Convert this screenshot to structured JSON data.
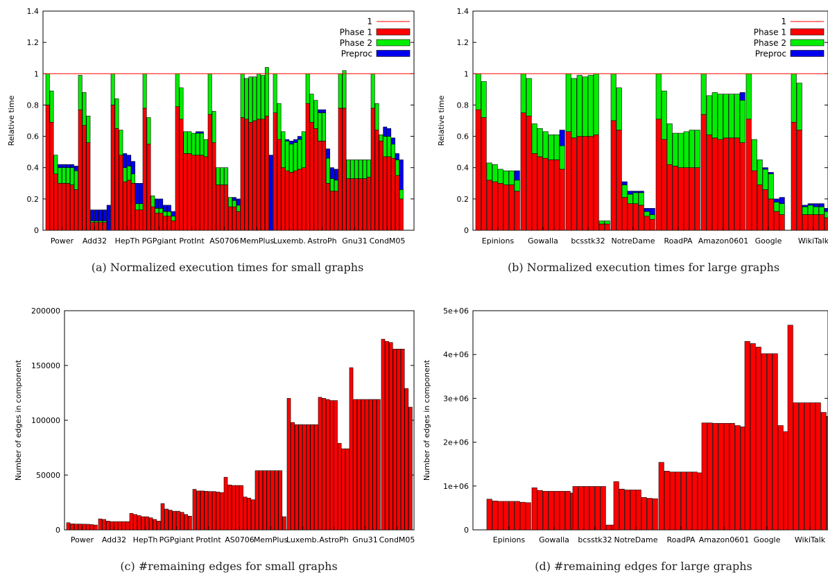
{
  "chart_data": [
    {
      "type": "bar",
      "stacked": true,
      "caption": "(a) Normalized execution times for small graphs",
      "ylabel": "Relative time",
      "ylim": [
        0,
        1.4
      ],
      "yticks": [
        "0",
        "0.2",
        "0.4",
        "0.6",
        "0.8",
        "1",
        "1.2",
        "1.4"
      ],
      "reference_line": {
        "name": "1",
        "value": 1,
        "color": "#ff0000"
      },
      "legend": {
        "placement": "top-right",
        "entries": [
          "1",
          "Phase 1",
          "Phase 2",
          "Preproc"
        ]
      },
      "categories": [
        "Power",
        "Add32",
        "HepTh",
        "PGPgiant",
        "ProtInt",
        "AS0706",
        "MemPlus",
        "Luxemb.",
        "AstroPh",
        "Gnu31",
        "CondM05"
      ],
      "bars_per_group": 8,
      "series": [
        {
          "name": "Phase 1",
          "color": "#ff0000",
          "values": [
            [
              0.8,
              0.69,
              0.36,
              0.3,
              0.3,
              0.3,
              0.29,
              0.26
            ],
            [
              0.77,
              0.67,
              0.56,
              0.05,
              0.05,
              0.05,
              0.05,
              0.0
            ],
            [
              0.8,
              0.65,
              0.48,
              0.31,
              0.32,
              0.3,
              0.13,
              0.13
            ],
            [
              0.78,
              0.55,
              0.15,
              0.11,
              0.11,
              0.09,
              0.09,
              0.06
            ],
            [
              0.79,
              0.71,
              0.49,
              0.49,
              0.48,
              0.48,
              0.48,
              0.47
            ],
            [
              0.74,
              0.56,
              0.29,
              0.29,
              0.29,
              0.15,
              0.15,
              0.12
            ],
            [
              0.72,
              0.71,
              0.69,
              0.7,
              0.71,
              0.71,
              0.73,
              0.0
            ],
            [
              0.75,
              0.58,
              0.4,
              0.38,
              0.37,
              0.38,
              0.39,
              0.4
            ],
            [
              0.81,
              0.69,
              0.65,
              0.57,
              0.57,
              0.3,
              0.25,
              0.25
            ],
            [
              0.78,
              0.78,
              0.33,
              0.33,
              0.33,
              0.33,
              0.33,
              0.34
            ],
            [
              0.78,
              0.64,
              0.57,
              0.47,
              0.47,
              0.46,
              0.35,
              0.2
            ]
          ]
        },
        {
          "name": "Phase 2",
          "color": "#00ee00",
          "values": [
            [
              0.2,
              0.2,
              0.12,
              0.1,
              0.1,
              0.1,
              0.11,
              0.12
            ],
            [
              0.22,
              0.21,
              0.17,
              0.01,
              0.01,
              0.01,
              0.01,
              0.0
            ],
            [
              0.2,
              0.19,
              0.16,
              0.09,
              0.09,
              0.06,
              0.04,
              0.04
            ],
            [
              0.22,
              0.17,
              0.07,
              0.03,
              0.03,
              0.03,
              0.03,
              0.03
            ],
            [
              0.21,
              0.2,
              0.14,
              0.14,
              0.14,
              0.14,
              0.14,
              0.11
            ],
            [
              0.26,
              0.2,
              0.11,
              0.11,
              0.11,
              0.06,
              0.04,
              0.04
            ],
            [
              0.28,
              0.26,
              0.29,
              0.28,
              0.29,
              0.28,
              0.31,
              0.0
            ],
            [
              0.25,
              0.23,
              0.23,
              0.19,
              0.18,
              0.18,
              0.19,
              0.23
            ],
            [
              0.19,
              0.18,
              0.18,
              0.18,
              0.18,
              0.16,
              0.08,
              0.07
            ],
            [
              0.22,
              0.24,
              0.12,
              0.12,
              0.12,
              0.12,
              0.12,
              0.11
            ],
            [
              0.22,
              0.17,
              0.04,
              0.13,
              0.13,
              0.09,
              0.1,
              0.06
            ]
          ]
        },
        {
          "name": "Preproc",
          "color": "#0000ee",
          "values": [
            [
              0.0,
              0.0,
              0.0,
              0.02,
              0.02,
              0.02,
              0.02,
              0.03
            ],
            [
              0.0,
              0.0,
              0.0,
              0.07,
              0.07,
              0.07,
              0.07,
              0.16
            ],
            [
              0.0,
              0.0,
              0.0,
              0.09,
              0.07,
              0.08,
              0.13,
              0.13
            ],
            [
              0.0,
              0.0,
              0.0,
              0.06,
              0.06,
              0.04,
              0.04,
              0.03
            ],
            [
              0.0,
              0.0,
              0.0,
              0.0,
              0.0,
              0.01,
              0.01,
              0.0
            ],
            [
              0.0,
              0.0,
              0.0,
              0.0,
              0.0,
              0.0,
              0.02,
              0.04
            ],
            [
              0.0,
              0.0,
              0.0,
              0.0,
              0.0,
              0.0,
              0.0,
              0.48
            ],
            [
              0.0,
              0.0,
              0.0,
              0.01,
              0.02,
              0.02,
              0.02,
              0.0
            ],
            [
              0.0,
              0.0,
              0.0,
              0.02,
              0.02,
              0.06,
              0.07,
              0.07
            ],
            [
              0.0,
              0.0,
              0.0,
              0.0,
              0.0,
              0.0,
              0.0,
              0.0
            ],
            [
              0.0,
              0.0,
              0.0,
              0.06,
              0.05,
              0.04,
              0.04,
              0.19
            ]
          ]
        }
      ]
    },
    {
      "type": "bar",
      "stacked": true,
      "caption": "(b) Normalized execution times for large graphs",
      "ylabel": "Relative time",
      "ylim": [
        0,
        1.4
      ],
      "yticks": [
        "0",
        "0.2",
        "0.4",
        "0.6",
        "0.8",
        "1",
        "1.2",
        "1.4"
      ],
      "reference_line": {
        "name": "1",
        "value": 1,
        "color": "#ff0000"
      },
      "legend": {
        "placement": "top-right",
        "entries": [
          "1",
          "Phase 1",
          "Phase 2",
          "Preproc"
        ]
      },
      "categories": [
        "Epinions",
        "Gowalla",
        "bcsstk32",
        "NotreDame",
        "RoadPA",
        "Amazon0601",
        "Google",
        "WikiTalk"
      ],
      "bars_per_group": 8,
      "series": [
        {
          "name": "Phase 1",
          "color": "#ff0000",
          "values": [
            [
              0.77,
              0.72,
              0.32,
              0.31,
              0.3,
              0.29,
              0.29,
              0.25
            ],
            [
              0.75,
              0.73,
              0.49,
              0.47,
              0.46,
              0.45,
              0.45,
              0.39
            ],
            [
              0.63,
              0.59,
              0.6,
              0.6,
              0.6,
              0.61,
              0.04,
              0.04
            ],
            [
              0.7,
              0.64,
              0.21,
              0.17,
              0.17,
              0.16,
              0.09,
              0.07
            ],
            [
              0.71,
              0.58,
              0.42,
              0.41,
              0.4,
              0.4,
              0.4,
              0.4
            ],
            [
              0.74,
              0.61,
              0.59,
              0.58,
              0.59,
              0.59,
              0.59,
              0.56
            ],
            [
              0.71,
              0.38,
              0.29,
              0.26,
              0.2,
              0.12,
              0.1,
              0.0
            ],
            [
              0.69,
              0.64,
              0.1,
              0.1,
              0.1,
              0.1,
              0.08,
              0.06
            ]
          ]
        },
        {
          "name": "Phase 2",
          "color": "#00ee00",
          "values": [
            [
              0.23,
              0.23,
              0.11,
              0.11,
              0.09,
              0.09,
              0.09,
              0.07
            ],
            [
              0.25,
              0.24,
              0.19,
              0.18,
              0.17,
              0.16,
              0.16,
              0.15
            ],
            [
              0.37,
              0.38,
              0.39,
              0.38,
              0.39,
              0.39,
              0.02,
              0.02
            ],
            [
              0.3,
              0.27,
              0.08,
              0.06,
              0.07,
              0.08,
              0.03,
              0.03
            ],
            [
              0.29,
              0.31,
              0.26,
              0.21,
              0.22,
              0.23,
              0.24,
              0.24
            ],
            [
              0.26,
              0.25,
              0.29,
              0.29,
              0.28,
              0.28,
              0.28,
              0.27
            ],
            [
              0.29,
              0.2,
              0.16,
              0.13,
              0.16,
              0.06,
              0.07,
              0.0
            ],
            [
              0.31,
              0.3,
              0.05,
              0.06,
              0.05,
              0.05,
              0.04,
              0.04
            ]
          ]
        },
        {
          "name": "Preproc",
          "color": "#0000ee",
          "values": [
            [
              0.0,
              0.0,
              0.0,
              0.0,
              0.0,
              0.0,
              0.0,
              0.06
            ],
            [
              0.0,
              0.0,
              0.0,
              0.0,
              0.0,
              0.0,
              0.0,
              0.1
            ],
            [
              0.0,
              0.0,
              0.0,
              0.0,
              0.0,
              0.0,
              0.0,
              0.0
            ],
            [
              0.0,
              0.0,
              0.02,
              0.02,
              0.01,
              0.01,
              0.02,
              0.04
            ],
            [
              0.0,
              0.0,
              0.0,
              0.0,
              0.0,
              0.0,
              0.0,
              0.0
            ],
            [
              0.0,
              0.0,
              0.0,
              0.0,
              0.0,
              0.0,
              0.0,
              0.05
            ],
            [
              0.0,
              0.0,
              0.0,
              0.01,
              0.01,
              0.02,
              0.04,
              0.0
            ],
            [
              0.0,
              0.0,
              0.01,
              0.01,
              0.02,
              0.02,
              0.02,
              0.02
            ]
          ]
        }
      ]
    },
    {
      "type": "bar",
      "caption": "(c) #remaining edges for small graphs",
      "ylabel": "Number of edges in component",
      "ylim": [
        0,
        200000
      ],
      "yticks": [
        "0",
        "50000",
        "100000",
        "150000",
        "200000"
      ],
      "categories": [
        "Power",
        "Add32",
        "HepTh",
        "PGPgiant",
        "ProtInt",
        "AS0706",
        "MemPlus",
        "Luxemb.",
        "AstroPh",
        "Gnu31",
        "CondM05"
      ],
      "bars_per_group": 8,
      "series": [
        {
          "name": "edges",
          "color": "#ff0000",
          "values": [
            [
              6500,
              5500,
              5300,
              5300,
              5200,
              5100,
              4800,
              4400
            ],
            [
              10000,
              9500,
              8000,
              7500,
              7500,
              7500,
              7500,
              7500
            ],
            [
              15000,
              14000,
              13000,
              12000,
              12000,
              11000,
              9500,
              8000
            ],
            [
              24000,
              19000,
              18000,
              17000,
              17000,
              16000,
              14000,
              12500
            ],
            [
              37000,
              35500,
              35500,
              35200,
              35000,
              35000,
              34500,
              34000
            ],
            [
              48000,
              41000,
              40500,
              40500,
              40500,
              30000,
              29000,
              27500
            ],
            [
              54000,
              54000,
              54000,
              54000,
              54000,
              54000,
              54000,
              12000
            ],
            [
              120000,
              98000,
              96000,
              96000,
              96000,
              96000,
              96000,
              96000
            ],
            [
              121000,
              120000,
              119000,
              118000,
              118000,
              79000,
              74000,
              74000
            ],
            [
              148000,
              119000,
              119000,
              119000,
              119000,
              119000,
              119000,
              119000
            ],
            [
              174000,
              172000,
              171000,
              165000,
              165000,
              165000,
              129000,
              112000
            ]
          ]
        }
      ]
    },
    {
      "type": "bar",
      "caption": "(d) #remaining edges for large graphs",
      "ylabel": "Number of edges in component",
      "ylim": [
        0,
        5000000
      ],
      "yticks": [
        "0",
        "1e+06",
        "2e+06",
        "3e+06",
        "4e+06",
        "5e+06"
      ],
      "categories": [
        "Epinions",
        "Gowalla",
        "bcsstk32",
        "NotreDame",
        "RoadPA",
        "Amazon0601",
        "Google",
        "WikiTalk"
      ],
      "bars_per_group": 8,
      "series": [
        {
          "name": "edges",
          "color": "#ff0000",
          "values": [
            [
              700000,
              660000,
              650000,
              650000,
              650000,
              650000,
              630000,
              620000
            ],
            [
              960000,
              900000,
              880000,
              880000,
              880000,
              880000,
              880000,
              840000
            ],
            [
              990000,
              990000,
              990000,
              990000,
              990000,
              990000,
              110000,
              110000
            ],
            [
              1100000,
              930000,
              910000,
              910000,
              910000,
              740000,
              720000,
              710000
            ],
            [
              1540000,
              1340000,
              1320000,
              1320000,
              1320000,
              1320000,
              1320000,
              1300000
            ],
            [
              2440000,
              2440000,
              2430000,
              2430000,
              2430000,
              2430000,
              2380000,
              2350000
            ],
            [
              4300000,
              4250000,
              4170000,
              4020000,
              4020000,
              4020000,
              2380000,
              2240000
            ],
            [
              4670000,
              2900000,
              2900000,
              2900000,
              2900000,
              2900000,
              2680000,
              2590000
            ]
          ]
        }
      ]
    }
  ]
}
